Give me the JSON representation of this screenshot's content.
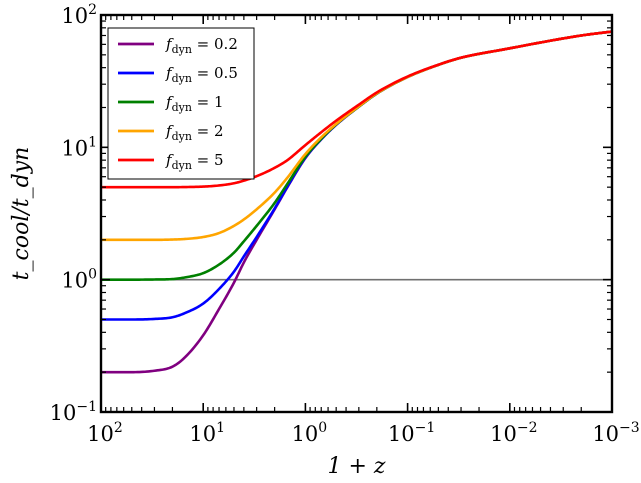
{
  "chart_data": {
    "type": "line",
    "title": "",
    "xlabel": "1 + z",
    "ylabel": "t_cool/t_dyn",
    "x_scale": "log",
    "y_scale": "log",
    "x_reversed": true,
    "xlim": [
      100,
      0.001
    ],
    "ylim": [
      0.1,
      100
    ],
    "grid": false,
    "legend_position": "upper-left",
    "x_ticks": [
      {
        "base": "10",
        "exp": "2"
      },
      {
        "base": "10",
        "exp": "1"
      },
      {
        "base": "10",
        "exp": "0"
      },
      {
        "base": "10",
        "exp": "−1"
      },
      {
        "base": "10",
        "exp": "−2"
      },
      {
        "base": "10",
        "exp": "−3"
      }
    ],
    "y_ticks": [
      {
        "base": "10",
        "exp": "−1"
      },
      {
        "base": "10",
        "exp": "0"
      },
      {
        "base": "10",
        "exp": "1"
      },
      {
        "base": "10",
        "exp": "2"
      }
    ],
    "reference_line": {
      "y": 1,
      "color": "#707070"
    },
    "x": [
      100,
      50,
      30,
      20,
      15,
      10,
      7,
      5,
      4,
      3,
      2,
      1.5,
      1,
      0.7,
      0.5,
      0.3,
      0.2,
      0.1,
      0.05,
      0.03,
      0.01,
      0.005,
      0.002,
      0.001
    ],
    "series": [
      {
        "name": "f_dyn = 0.2",
        "label_base": "f",
        "label_sub": "dyn",
        "label_value": " = 0.2",
        "color": "#800080",
        "values": [
          0.2,
          0.2,
          0.205,
          0.22,
          0.26,
          0.38,
          0.6,
          0.95,
          1.35,
          2.0,
          3.4,
          5.0,
          8.3,
          11.5,
          14.8,
          20.3,
          25.5,
          34.0,
          42.0,
          47.5,
          56.0,
          62.0,
          70.0,
          75.0
        ]
      },
      {
        "name": "f_dyn = 0.5",
        "label_base": "f",
        "label_sub": "dyn",
        "label_value": " = 0.5",
        "color": "#0000ff",
        "values": [
          0.5,
          0.5,
          0.505,
          0.52,
          0.56,
          0.66,
          0.85,
          1.15,
          1.5,
          2.1,
          3.45,
          5.05,
          8.35,
          11.5,
          14.8,
          20.3,
          25.5,
          34.0,
          42.0,
          47.5,
          56.0,
          62.0,
          70.0,
          75.0
        ]
      },
      {
        "name": "f_dyn = 1",
        "label_base": "f",
        "label_sub": "dyn",
        "label_value": " = 1",
        "color": "#008000",
        "values": [
          1.0,
          1.0,
          1.003,
          1.01,
          1.04,
          1.12,
          1.3,
          1.6,
          1.95,
          2.55,
          3.8,
          5.3,
          8.5,
          11.6,
          14.9,
          20.3,
          25.5,
          34.0,
          42.0,
          47.5,
          56.0,
          62.0,
          70.0,
          75.0
        ]
      },
      {
        "name": "f_dyn = 2",
        "label_base": "f",
        "label_sub": "dyn",
        "label_value": " = 2",
        "color": "#ffa500",
        "values": [
          2.0,
          2.0,
          2.0,
          2.01,
          2.03,
          2.1,
          2.25,
          2.55,
          2.85,
          3.4,
          4.55,
          5.9,
          8.9,
          11.9,
          15.0,
          20.4,
          25.6,
          34.0,
          42.0,
          47.5,
          56.0,
          62.0,
          70.0,
          75.0
        ]
      },
      {
        "name": "f_dyn = 5",
        "label_base": "f",
        "label_sub": "dyn",
        "label_value": " = 5",
        "color": "#ff0000",
        "values": [
          5.0,
          5.0,
          5.0,
          5.0,
          5.01,
          5.05,
          5.15,
          5.35,
          5.6,
          6.05,
          7.0,
          8.0,
          10.4,
          13.0,
          15.9,
          21.0,
          26.0,
          34.3,
          42.1,
          47.6,
          56.0,
          62.0,
          70.0,
          75.0
        ]
      }
    ]
  }
}
